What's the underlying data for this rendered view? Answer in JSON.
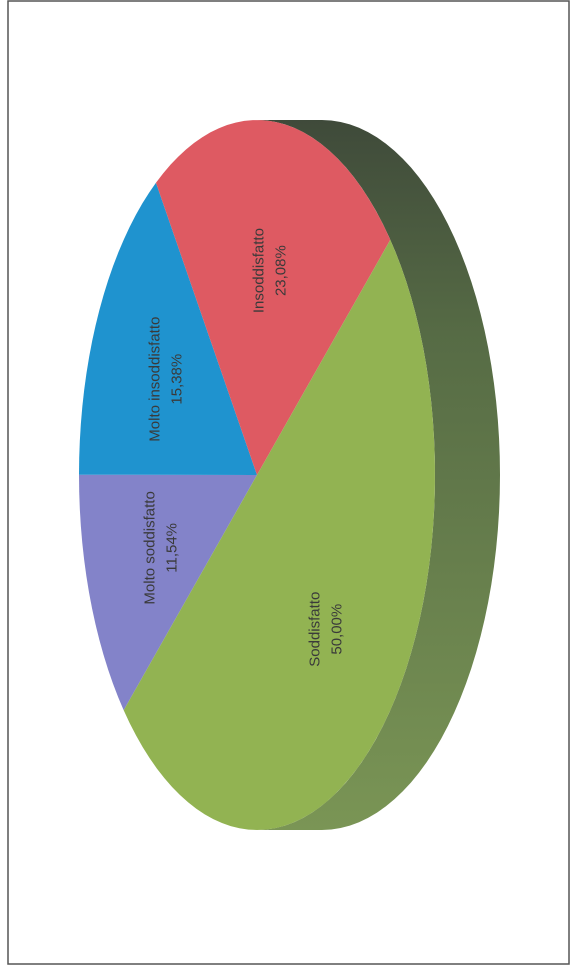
{
  "chart_data": {
    "type": "pie",
    "categories": [
      "Molto soddisfatto",
      "Molto insoddisfatto",
      "Insoddisfatto",
      "Soddisfatto"
    ],
    "values": [
      11.54,
      15.38,
      23.08,
      50.0
    ],
    "value_labels": [
      "11,54%",
      "15,38%",
      "23,08%",
      "50,00%"
    ],
    "colors": [
      "#8383c9",
      "#1f93cf",
      "#de5a62",
      "#92b352"
    ]
  }
}
